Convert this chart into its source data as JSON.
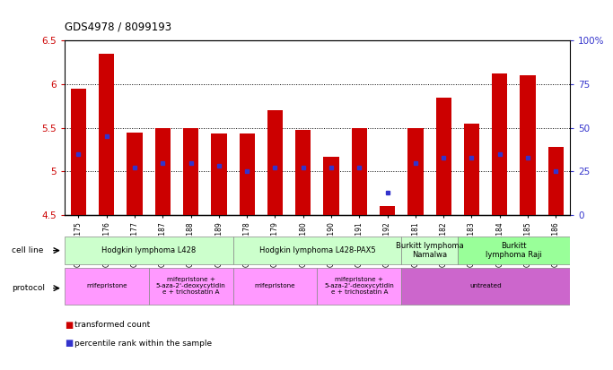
{
  "title": "GDS4978 / 8099193",
  "samples": [
    "GSM1081175",
    "GSM1081176",
    "GSM1081177",
    "GSM1081187",
    "GSM1081188",
    "GSM1081189",
    "GSM1081178",
    "GSM1081179",
    "GSM1081180",
    "GSM1081190",
    "GSM1081191",
    "GSM1081192",
    "GSM1081181",
    "GSM1081182",
    "GSM1081183",
    "GSM1081184",
    "GSM1081185",
    "GSM1081186"
  ],
  "transformed_counts": [
    5.95,
    6.35,
    5.45,
    5.5,
    5.5,
    5.43,
    5.43,
    5.7,
    5.48,
    5.17,
    5.5,
    4.6,
    5.5,
    5.85,
    5.55,
    6.12,
    6.1,
    5.28
  ],
  "percentile_ranks": [
    35,
    45,
    27,
    30,
    30,
    28,
    25,
    27,
    27,
    27,
    27,
    13,
    30,
    33,
    33,
    35,
    33,
    25
  ],
  "ylim_left": [
    4.5,
    6.5
  ],
  "ylim_right": [
    0,
    100
  ],
  "bar_color": "#cc0000",
  "dot_color": "#3333cc",
  "bar_width": 0.55,
  "yticks_left": [
    4.5,
    5.0,
    5.5,
    6.0,
    6.5
  ],
  "ytick_labels_left": [
    "4.5",
    "5",
    "5.5",
    "6",
    "6.5"
  ],
  "yticks_right": [
    0,
    25,
    50,
    75,
    100
  ],
  "ytick_labels_right": [
    "0",
    "25",
    "50",
    "75",
    "100%"
  ],
  "gridline_values": [
    5.0,
    5.5,
    6.0
  ],
  "cell_lines": [
    {
      "label": "Hodgkin lymphoma L428",
      "start": 0,
      "end": 6,
      "color": "#ccffcc"
    },
    {
      "label": "Hodgkin lymphoma L428-PAX5",
      "start": 6,
      "end": 12,
      "color": "#ccffcc"
    },
    {
      "label": "Burkitt lymphoma\nNamalwa",
      "start": 12,
      "end": 14,
      "color": "#ccffcc"
    },
    {
      "label": "Burkitt\nlymphoma Raji",
      "start": 14,
      "end": 18,
      "color": "#99ff99"
    }
  ],
  "protocols": [
    {
      "label": "mifepristone",
      "start": 0,
      "end": 3,
      "color": "#ff99ff"
    },
    {
      "label": "mifepristone +\n5-aza-2'-deoxycytidin\ne + trichostatin A",
      "start": 3,
      "end": 6,
      "color": "#ff99ff"
    },
    {
      "label": "mifepristone",
      "start": 6,
      "end": 9,
      "color": "#ff99ff"
    },
    {
      "label": "mifepristone +\n5-aza-2'-deoxycytidin\ne + trichostatin A",
      "start": 9,
      "end": 12,
      "color": "#ff99ff"
    },
    {
      "label": "untreated",
      "start": 12,
      "end": 18,
      "color": "#cc66cc"
    }
  ]
}
